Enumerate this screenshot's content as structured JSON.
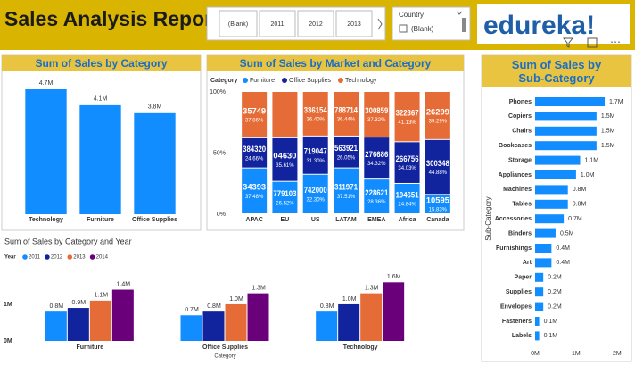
{
  "header": {
    "title": "Sales Analysis Report",
    "year_slicer": {
      "buttons": [
        "(Blank)",
        "2011",
        "2012",
        "2013"
      ]
    },
    "country_slicer": {
      "title": "Country",
      "option": "(Blank)"
    },
    "logo": "edureka!"
  },
  "chart_data": [
    {
      "type": "bar",
      "title": "Sum of Sales by Category",
      "categories": [
        "Technology",
        "Furniture",
        "Office Supplies"
      ],
      "values": [
        4.7,
        4.1,
        3.8
      ],
      "value_labels": [
        "4.7M",
        "4.1M",
        "3.8M"
      ],
      "color": "#118dff"
    },
    {
      "type": "stacked_bar",
      "title": "Sum of Sales by Market and Category",
      "legend_title": "Category",
      "categories": [
        "APAC",
        "EU",
        "US",
        "LATAM",
        "EMEA",
        "Africa",
        "Canada"
      ],
      "ylim": [
        0,
        100
      ],
      "yticks": [
        {
          "value": 0,
          "label": "0%"
        },
        {
          "value": 50,
          "label": "50%"
        },
        {
          "value": 100,
          "label": "100%"
        }
      ],
      "series": [
        {
          "name": "Furniture",
          "color": "#118dff",
          "values": [
            37.48,
            26.52,
            32.3,
            37.51,
            28.36,
            24.84,
            15.83
          ],
          "value_labels": [
            "37.48%",
            "26.52%",
            "32.30%",
            "37.51%",
            "28.36%",
            "24.84%",
            "15.83%"
          ],
          "amount_labels": [
            "34393",
            "779103",
            "742000",
            "311971",
            "228621",
            "194651",
            "10595"
          ]
        },
        {
          "name": "Office Supplies",
          "color": "#12239e",
          "values": [
            24.66,
            35.61,
            31.3,
            26.05,
            34.32,
            34.03,
            44.88
          ],
          "value_labels": [
            "24.66%",
            "35.61%",
            "31.30%",
            "26.05%",
            "34.32%",
            "34.03%",
            "44.88%"
          ],
          "amount_labels": [
            "384320",
            "04630",
            "719047",
            "563921",
            "276686",
            "266756",
            "300348"
          ]
        },
        {
          "name": "Technology",
          "color": "#e66c37",
          "values": [
            37.86,
            37.87,
            36.4,
            36.44,
            37.32,
            41.13,
            39.29
          ],
          "value_labels": [
            "37.86%",
            null,
            "36.40%",
            "36.44%",
            "37.32%",
            "41.13%",
            "39.29%"
          ],
          "amount_labels": [
            "35749",
            null,
            "336154",
            "788714",
            "300859",
            "322367",
            "26299"
          ]
        }
      ]
    },
    {
      "type": "hbar",
      "title": "Sum of Sales by Sub-Category",
      "ylabel": "Sub-Category",
      "categories": [
        "Phones",
        "Copiers",
        "Chairs",
        "Bookcases",
        "Storage",
        "Appliances",
        "Machines",
        "Tables",
        "Accessories",
        "Binders",
        "Furnishings",
        "Art",
        "Paper",
        "Supplies",
        "Envelopes",
        "Fasteners",
        "Labels"
      ],
      "values": [
        1.7,
        1.5,
        1.5,
        1.5,
        1.1,
        1.0,
        0.8,
        0.8,
        0.7,
        0.5,
        0.4,
        0.4,
        0.2,
        0.2,
        0.2,
        0.1,
        0.1
      ],
      "value_labels": [
        "1.7M",
        "1.5M",
        "1.5M",
        "1.5M",
        "1.1M",
        "1.0M",
        "0.8M",
        "0.8M",
        "0.7M",
        "0.5M",
        "0.4M",
        "0.4M",
        "0.2M",
        "0.2M",
        "0.2M",
        "0.1M",
        "0.1M"
      ],
      "color": "#118dff",
      "xlim": [
        0,
        2.2
      ],
      "xticks": [
        {
          "value": 0,
          "label": "0M"
        },
        {
          "value": 1,
          "label": "1M"
        },
        {
          "value": 2,
          "label": "2M"
        }
      ]
    },
    {
      "type": "grouped_bar",
      "title": "Sum of Sales by Category and Year",
      "xlabel": "Category",
      "legend_title": "Year",
      "categories": [
        "Furniture",
        "Office Supplies",
        "Technology"
      ],
      "ylim": [
        0,
        1.9
      ],
      "yticks": [
        {
          "value": 0,
          "label": "0M"
        },
        {
          "value": 1,
          "label": "1M"
        }
      ],
      "series": [
        {
          "name": "2011",
          "color": "#118dff",
          "values": [
            0.8,
            0.7,
            0.8
          ],
          "value_labels": [
            "0.8M",
            "0.7M",
            "0.8M"
          ]
        },
        {
          "name": "2012",
          "color": "#12239e",
          "values": [
            0.9,
            0.8,
            1.0
          ],
          "value_labels": [
            "0.9M",
            "0.8M",
            "1.0M"
          ]
        },
        {
          "name": "2013",
          "color": "#e66c37",
          "values": [
            1.1,
            1.0,
            1.3
          ],
          "value_labels": [
            "1.1M",
            "1.0M",
            "1.3M"
          ]
        },
        {
          "name": "2014",
          "color": "#6b007b",
          "values": [
            1.4,
            1.3,
            1.6
          ],
          "value_labels": [
            "1.4M",
            "1.3M",
            "1.6M"
          ]
        }
      ]
    }
  ]
}
